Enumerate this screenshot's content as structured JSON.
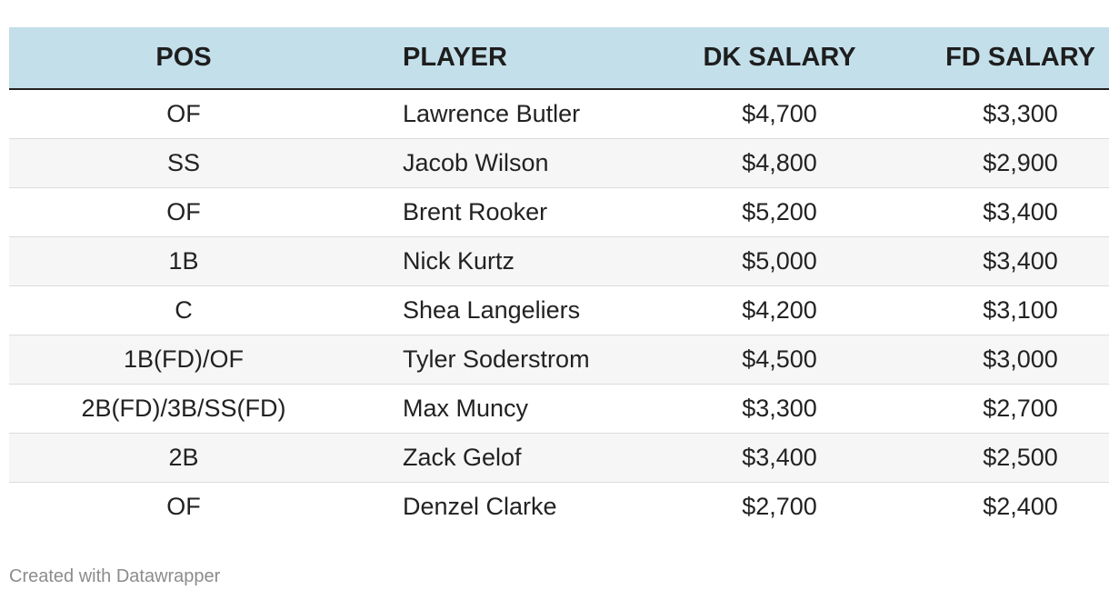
{
  "table": {
    "headers": {
      "pos": "POS",
      "player": "PLAYER",
      "dk_salary": "DK SALARY",
      "fd_salary": "FD SALARY"
    },
    "rows": [
      {
        "pos": "OF",
        "player": "Lawrence Butler",
        "dk_salary": "$4,700",
        "fd_salary": "$3,300"
      },
      {
        "pos": "SS",
        "player": "Jacob Wilson",
        "dk_salary": "$4,800",
        "fd_salary": "$2,900"
      },
      {
        "pos": "OF",
        "player": "Brent Rooker",
        "dk_salary": "$5,200",
        "fd_salary": "$3,400"
      },
      {
        "pos": "1B",
        "player": "Nick Kurtz",
        "dk_salary": "$5,000",
        "fd_salary": "$3,400"
      },
      {
        "pos": "C",
        "player": "Shea Langeliers",
        "dk_salary": "$4,200",
        "fd_salary": "$3,100"
      },
      {
        "pos": "1B(FD)/OF",
        "player": "Tyler Soderstrom",
        "dk_salary": "$4,500",
        "fd_salary": "$3,000"
      },
      {
        "pos": "2B(FD)/3B/SS(FD)",
        "player": "Max Muncy",
        "dk_salary": "$3,300",
        "fd_salary": "$2,700"
      },
      {
        "pos": "2B",
        "player": "Zack Gelof",
        "dk_salary": "$3,400",
        "fd_salary": "$2,500"
      },
      {
        "pos": "OF",
        "player": "Denzel Clarke",
        "dk_salary": "$2,700",
        "fd_salary": "$2,400"
      }
    ]
  },
  "footer": {
    "credit": "Created with Datawrapper"
  },
  "colors": {
    "header_background": "#c3dfea",
    "stripe_background": "#f6f6f6",
    "footer_text": "#8c8c8c"
  }
}
